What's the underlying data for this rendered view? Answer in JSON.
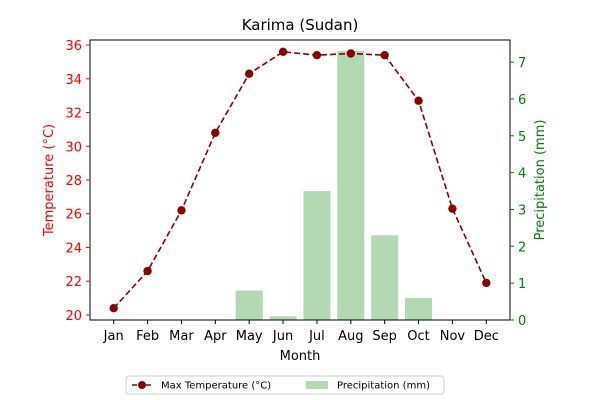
{
  "chart_data": {
    "type": "bar+line",
    "title": "Karima (Sudan)",
    "xlabel": "Month",
    "categories": [
      "Jan",
      "Feb",
      "Mar",
      "Apr",
      "May",
      "Jun",
      "Jul",
      "Aug",
      "Sep",
      "Oct",
      "Nov",
      "Dec"
    ],
    "left_axis": {
      "label": "Temperature (°C)",
      "color": "#ff0000",
      "ylim": [
        19.7,
        36.3
      ],
      "ticks": [
        20,
        22,
        24,
        26,
        28,
        30,
        32,
        34,
        36
      ]
    },
    "right_axis": {
      "label": "Precipitation (mm)",
      "color": "#008000",
      "ylim": [
        0,
        7.6
      ],
      "ticks": [
        0,
        1,
        2,
        3,
        4,
        5,
        6,
        7
      ]
    },
    "series": [
      {
        "name": "Max Temperature (°C)",
        "kind": "line",
        "axis": "left",
        "style": "dashed, circle markers",
        "color": "#8b0000",
        "values": [
          20.4,
          22.6,
          26.2,
          30.8,
          34.3,
          35.6,
          35.4,
          35.5,
          35.4,
          32.7,
          26.3,
          21.9
        ]
      },
      {
        "name": "Precipitation (mm)",
        "kind": "bar",
        "axis": "right",
        "color": "#b2d9b2",
        "values": [
          0,
          0,
          0,
          0,
          0.8,
          0.1,
          3.5,
          7.3,
          2.3,
          0.6,
          0,
          0
        ]
      }
    ],
    "legend": {
      "placement": "bottom-center",
      "columns": 2
    },
    "grid": false
  }
}
